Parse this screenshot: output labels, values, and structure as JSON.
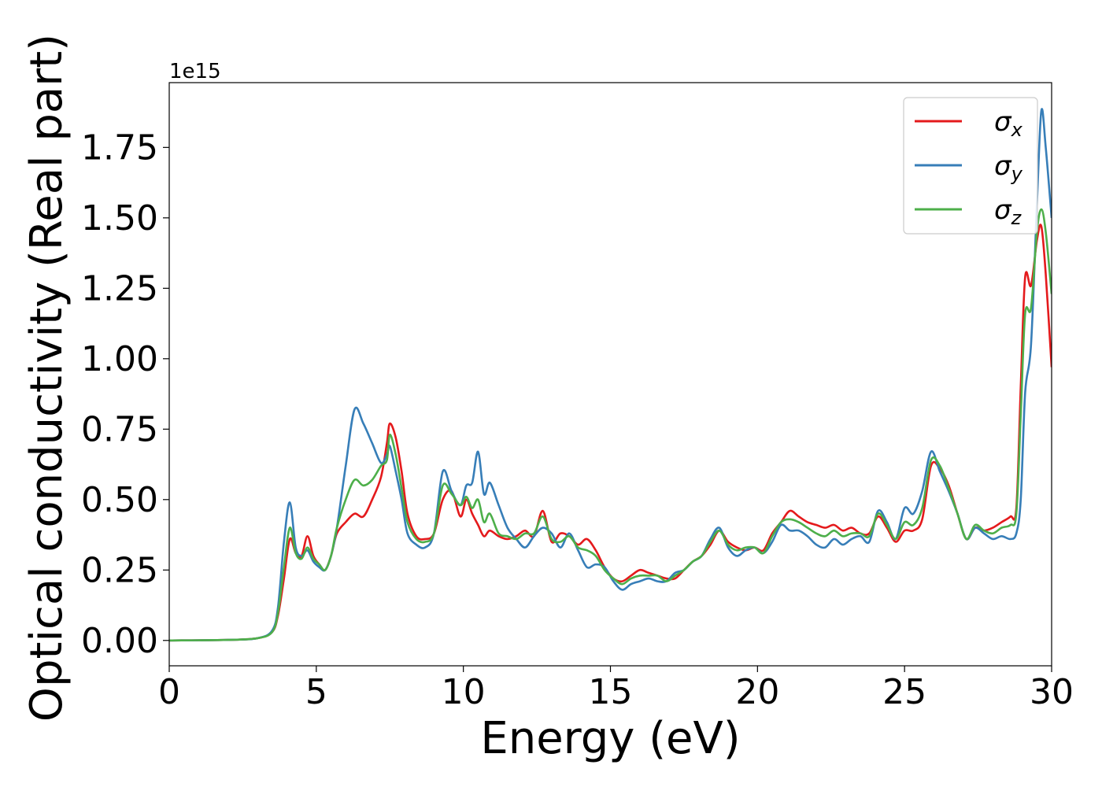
{
  "chart_data": {
    "type": "line",
    "title": "",
    "xlabel": "Energy (eV)",
    "ylabel": "Optical conductivity (Real part)",
    "offset_text": "1e15",
    "y_scale_factor": 1000000000000000.0,
    "xlim": [
      0,
      30
    ],
    "ylim": [
      -0.09,
      1.98
    ],
    "x_ticks": [
      0,
      5,
      10,
      15,
      20,
      25,
      30
    ],
    "x_tick_labels": [
      "0",
      "5",
      "10",
      "15",
      "20",
      "25",
      "30"
    ],
    "y_ticks": [
      0.0,
      0.25,
      0.5,
      0.75,
      1.0,
      1.25,
      1.5,
      1.75
    ],
    "y_tick_labels": [
      "0.00",
      "0.25",
      "0.50",
      "0.75",
      "1.00",
      "1.25",
      "1.50",
      "1.75"
    ],
    "grid": false,
    "legend_position": "top-right",
    "series": [
      {
        "name": "σx",
        "legend_base": "σ",
        "legend_sub": "x",
        "color": "#e41a1c",
        "x": [
          0,
          2,
          3,
          3.5,
          3.7,
          3.9,
          4.1,
          4.3,
          4.5,
          4.7,
          4.9,
          5.1,
          5.3,
          5.5,
          5.7,
          6.0,
          6.3,
          6.6,
          6.9,
          7.2,
          7.4,
          7.5,
          7.7,
          7.9,
          8.1,
          8.4,
          8.7,
          9.0,
          9.3,
          9.6,
          9.9,
          10.1,
          10.3,
          10.5,
          10.7,
          10.9,
          11.2,
          11.5,
          11.8,
          12.1,
          12.4,
          12.7,
          13.0,
          13.3,
          13.6,
          13.9,
          14.2,
          14.5,
          14.8,
          15.1,
          15.4,
          15.7,
          16.0,
          16.3,
          16.6,
          16.9,
          17.2,
          17.5,
          17.8,
          18.1,
          18.4,
          18.7,
          19.0,
          19.3,
          19.6,
          19.9,
          20.2,
          20.5,
          20.8,
          21.1,
          21.4,
          21.7,
          22.0,
          22.3,
          22.6,
          22.9,
          23.2,
          23.5,
          23.8,
          24.1,
          24.4,
          24.7,
          25.0,
          25.3,
          25.6,
          25.9,
          26.2,
          26.5,
          26.8,
          27.1,
          27.4,
          27.7,
          28.0,
          28.3,
          28.6,
          28.8,
          28.95,
          29.1,
          29.3,
          29.5,
          29.65,
          29.8,
          30.0
        ],
        "y": [
          0,
          0.002,
          0.008,
          0.03,
          0.09,
          0.22,
          0.36,
          0.31,
          0.3,
          0.37,
          0.3,
          0.27,
          0.25,
          0.3,
          0.38,
          0.42,
          0.45,
          0.44,
          0.5,
          0.58,
          0.7,
          0.77,
          0.72,
          0.6,
          0.45,
          0.37,
          0.36,
          0.38,
          0.5,
          0.53,
          0.44,
          0.5,
          0.45,
          0.41,
          0.37,
          0.39,
          0.37,
          0.36,
          0.37,
          0.39,
          0.37,
          0.46,
          0.35,
          0.38,
          0.37,
          0.34,
          0.36,
          0.32,
          0.26,
          0.22,
          0.21,
          0.23,
          0.25,
          0.24,
          0.23,
          0.22,
          0.22,
          0.25,
          0.28,
          0.3,
          0.34,
          0.39,
          0.35,
          0.33,
          0.32,
          0.33,
          0.32,
          0.38,
          0.42,
          0.46,
          0.44,
          0.42,
          0.41,
          0.4,
          0.41,
          0.39,
          0.4,
          0.38,
          0.38,
          0.44,
          0.4,
          0.35,
          0.39,
          0.39,
          0.43,
          0.62,
          0.61,
          0.55,
          0.45,
          0.36,
          0.4,
          0.39,
          0.4,
          0.42,
          0.44,
          0.47,
          0.9,
          1.29,
          1.26,
          1.42,
          1.47,
          1.3,
          0.97
        ]
      },
      {
        "name": "σy",
        "legend_base": "σ",
        "legend_sub": "y",
        "color": "#377eb8",
        "x": [
          0,
          2,
          3,
          3.5,
          3.7,
          3.9,
          4.1,
          4.3,
          4.5,
          4.7,
          4.9,
          5.1,
          5.3,
          5.5,
          5.7,
          6.0,
          6.3,
          6.6,
          6.9,
          7.2,
          7.4,
          7.5,
          7.7,
          7.9,
          8.1,
          8.4,
          8.7,
          9.0,
          9.3,
          9.6,
          9.9,
          10.1,
          10.3,
          10.5,
          10.7,
          10.9,
          11.2,
          11.5,
          11.8,
          12.1,
          12.4,
          12.7,
          13.0,
          13.3,
          13.6,
          13.9,
          14.2,
          14.5,
          14.8,
          15.1,
          15.4,
          15.7,
          16.0,
          16.3,
          16.6,
          16.9,
          17.2,
          17.5,
          17.8,
          18.1,
          18.4,
          18.7,
          19.0,
          19.3,
          19.6,
          19.9,
          20.2,
          20.5,
          20.8,
          21.1,
          21.4,
          21.7,
          22.0,
          22.3,
          22.6,
          22.9,
          23.2,
          23.5,
          23.8,
          24.1,
          24.4,
          24.7,
          25.0,
          25.3,
          25.6,
          25.9,
          26.2,
          26.5,
          26.8,
          27.1,
          27.4,
          27.7,
          28.0,
          28.3,
          28.6,
          28.8,
          28.95,
          29.1,
          29.3,
          29.5,
          29.65,
          29.8,
          30.0
        ],
        "y": [
          0,
          0.002,
          0.008,
          0.035,
          0.12,
          0.35,
          0.49,
          0.33,
          0.3,
          0.32,
          0.28,
          0.26,
          0.25,
          0.3,
          0.4,
          0.62,
          0.82,
          0.77,
          0.7,
          0.63,
          0.66,
          0.69,
          0.6,
          0.5,
          0.38,
          0.34,
          0.33,
          0.38,
          0.6,
          0.53,
          0.48,
          0.55,
          0.56,
          0.67,
          0.52,
          0.56,
          0.48,
          0.4,
          0.36,
          0.33,
          0.37,
          0.4,
          0.38,
          0.33,
          0.38,
          0.32,
          0.26,
          0.27,
          0.26,
          0.21,
          0.18,
          0.2,
          0.21,
          0.22,
          0.21,
          0.21,
          0.24,
          0.25,
          0.28,
          0.3,
          0.36,
          0.4,
          0.33,
          0.3,
          0.32,
          0.33,
          0.31,
          0.35,
          0.41,
          0.39,
          0.39,
          0.37,
          0.34,
          0.33,
          0.36,
          0.34,
          0.36,
          0.37,
          0.35,
          0.46,
          0.42,
          0.36,
          0.47,
          0.45,
          0.53,
          0.67,
          0.6,
          0.53,
          0.45,
          0.36,
          0.4,
          0.38,
          0.36,
          0.37,
          0.36,
          0.38,
          0.5,
          0.88,
          1.05,
          1.55,
          1.88,
          1.75,
          1.5
        ]
      },
      {
        "name": "σz",
        "legend_base": "σ",
        "legend_sub": "z",
        "color": "#4daf4a",
        "x": [
          0,
          2,
          3,
          3.5,
          3.7,
          3.9,
          4.1,
          4.3,
          4.5,
          4.7,
          4.9,
          5.1,
          5.3,
          5.5,
          5.7,
          6.0,
          6.3,
          6.6,
          6.9,
          7.2,
          7.4,
          7.5,
          7.7,
          7.9,
          8.1,
          8.4,
          8.7,
          9.0,
          9.3,
          9.6,
          9.9,
          10.1,
          10.3,
          10.5,
          10.7,
          10.9,
          11.2,
          11.5,
          11.8,
          12.1,
          12.4,
          12.7,
          13.0,
          13.3,
          13.6,
          13.9,
          14.2,
          14.5,
          14.8,
          15.1,
          15.4,
          15.7,
          16.0,
          16.3,
          16.6,
          16.9,
          17.2,
          17.5,
          17.8,
          18.1,
          18.4,
          18.7,
          19.0,
          19.3,
          19.6,
          19.9,
          20.2,
          20.5,
          20.8,
          21.1,
          21.4,
          21.7,
          22.0,
          22.3,
          22.6,
          22.9,
          23.2,
          23.5,
          23.8,
          24.1,
          24.4,
          24.7,
          25.0,
          25.3,
          25.6,
          25.9,
          26.2,
          26.5,
          26.8,
          27.1,
          27.4,
          27.7,
          28.0,
          28.3,
          28.6,
          28.8,
          28.95,
          29.1,
          29.3,
          29.5,
          29.65,
          29.8,
          30.0
        ],
        "y": [
          0,
          0.002,
          0.008,
          0.03,
          0.1,
          0.26,
          0.4,
          0.31,
          0.29,
          0.33,
          0.29,
          0.27,
          0.25,
          0.3,
          0.4,
          0.5,
          0.57,
          0.55,
          0.57,
          0.62,
          0.64,
          0.73,
          0.66,
          0.54,
          0.42,
          0.36,
          0.35,
          0.38,
          0.55,
          0.52,
          0.48,
          0.51,
          0.47,
          0.5,
          0.42,
          0.45,
          0.38,
          0.37,
          0.36,
          0.38,
          0.38,
          0.44,
          0.36,
          0.35,
          0.37,
          0.33,
          0.32,
          0.3,
          0.25,
          0.22,
          0.2,
          0.22,
          0.23,
          0.23,
          0.23,
          0.21,
          0.23,
          0.25,
          0.28,
          0.3,
          0.35,
          0.39,
          0.34,
          0.32,
          0.33,
          0.33,
          0.31,
          0.37,
          0.42,
          0.43,
          0.42,
          0.4,
          0.38,
          0.37,
          0.39,
          0.37,
          0.38,
          0.38,
          0.37,
          0.45,
          0.41,
          0.36,
          0.42,
          0.41,
          0.47,
          0.64,
          0.62,
          0.54,
          0.45,
          0.36,
          0.41,
          0.39,
          0.38,
          0.4,
          0.41,
          0.45,
          0.8,
          1.16,
          1.18,
          1.45,
          1.53,
          1.45,
          1.23
        ]
      }
    ]
  }
}
